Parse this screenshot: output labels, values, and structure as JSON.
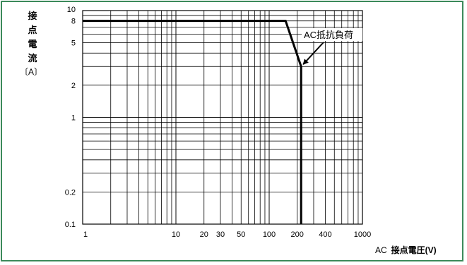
{
  "chart_data": {
    "type": "line",
    "ylabel": [
      "接",
      "点",
      "電",
      "流"
    ],
    "yunit": "〔A〕",
    "xlabel_prefix": "AC",
    "xlabel": "接点電圧(V)",
    "xscale": "log",
    "yscale": "log",
    "xlim": [
      1,
      1000
    ],
    "ylim": [
      0.1,
      10
    ],
    "x_ticks": [
      1,
      10,
      20,
      30,
      50,
      100,
      200,
      400,
      1000
    ],
    "x_tick_labels": [
      "1",
      "10",
      "20",
      "30",
      "50",
      "100",
      "200",
      "400",
      "1000"
    ],
    "y_ticks": [
      0.1,
      0.2,
      1,
      2,
      5,
      8,
      10
    ],
    "y_tick_labels": [
      "0.1",
      "0.2",
      "1",
      "2",
      "5",
      "8",
      "10"
    ],
    "grid": true,
    "series": [
      {
        "name": "AC抵抗負荷",
        "x": [
          1,
          150,
          220,
          220
        ],
        "y": [
          8,
          8,
          3,
          0.1
        ]
      }
    ],
    "annotation": {
      "text": "AC抵抗負荷",
      "arrow_target": [
        220,
        3
      ]
    }
  },
  "colors": {
    "frame_border": "#3c8a5a",
    "grid": "#000000",
    "series": "#000000"
  }
}
